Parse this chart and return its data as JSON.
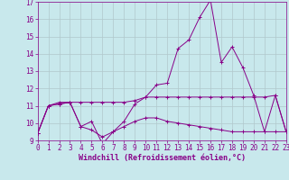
{
  "xlabel": "Windchill (Refroidissement éolien,°C)",
  "x": [
    0,
    1,
    2,
    3,
    4,
    5,
    6,
    7,
    8,
    9,
    10,
    11,
    12,
    13,
    14,
    15,
    16,
    17,
    18,
    19,
    20,
    21,
    22,
    23
  ],
  "line1": [
    9.4,
    11.0,
    11.1,
    11.2,
    9.8,
    10.1,
    8.8,
    9.5,
    10.1,
    11.1,
    11.5,
    12.2,
    12.3,
    14.3,
    14.8,
    16.1,
    17.1,
    13.5,
    14.4,
    13.2,
    11.6,
    9.5,
    11.6,
    9.5
  ],
  "line2": [
    9.4,
    11.0,
    11.2,
    11.2,
    11.2,
    11.2,
    11.2,
    11.2,
    11.2,
    11.3,
    11.5,
    11.5,
    11.5,
    11.5,
    11.5,
    11.5,
    11.5,
    11.5,
    11.5,
    11.5,
    11.5,
    11.5,
    11.6,
    9.5
  ],
  "line3": [
    9.4,
    11.0,
    11.1,
    11.2,
    9.8,
    9.6,
    9.2,
    9.5,
    9.8,
    10.1,
    10.3,
    10.3,
    10.1,
    10.0,
    9.9,
    9.8,
    9.7,
    9.6,
    9.5,
    9.5,
    9.5,
    9.5,
    9.5,
    9.5
  ],
  "line_color": "#880088",
  "bg_color": "#c8e8ec",
  "grid_color": "#b0c8cc",
  "ylim": [
    9,
    17
  ],
  "xlim": [
    0,
    23
  ],
  "yticks": [
    9,
    10,
    11,
    12,
    13,
    14,
    15,
    16,
    17
  ],
  "xticks": [
    0,
    1,
    2,
    3,
    4,
    5,
    6,
    7,
    8,
    9,
    10,
    11,
    12,
    13,
    14,
    15,
    16,
    17,
    18,
    19,
    20,
    21,
    22,
    23
  ],
  "tick_fontsize": 5.5,
  "xlabel_fontsize": 6.0
}
